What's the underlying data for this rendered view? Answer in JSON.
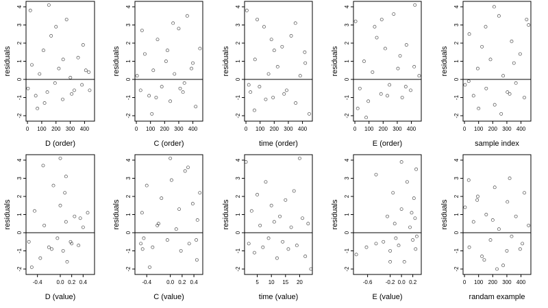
{
  "figure": {
    "panels": [
      {
        "xlabel": "D (order)",
        "xticks": [
          "0",
          "100",
          "200",
          "300",
          "400"
        ]
      },
      {
        "xlabel": "C (order)",
        "xticks": [
          "0",
          "100",
          "200",
          "300",
          "400"
        ]
      },
      {
        "xlabel": "time (order)",
        "xticks": [
          "0",
          "100",
          "200",
          "300",
          "400"
        ]
      },
      {
        "xlabel": "E (order)",
        "xticks": [
          "0",
          "100",
          "200",
          "300",
          "400"
        ]
      },
      {
        "xlabel": "sample index",
        "xticks": [
          "0",
          "100",
          "200",
          "300",
          "400"
        ]
      },
      {
        "xlabel": "D (value)",
        "xticks": [
          "-0.4",
          "0.0",
          "0.2",
          "0.4"
        ]
      },
      {
        "xlabel": "C (value)",
        "xticks": [
          "-0.4",
          "0.0",
          "0.2",
          "0.4"
        ]
      },
      {
        "xlabel": "time (value)",
        "xticks": [
          "5",
          "10",
          "15",
          "20"
        ]
      },
      {
        "xlabel": "E (value)",
        "xticks": [
          "-0.6",
          "-0.2",
          "0.0",
          "0.2"
        ]
      },
      {
        "xlabel": "randam example",
        "xticks": [
          "0",
          "100",
          "200",
          "300",
          "400"
        ]
      }
    ]
  },
  "chart_data": [
    {
      "type": "scatter",
      "xlabel": "D (order)",
      "ylabel": "residuals",
      "xlim": [
        -10,
        470
      ],
      "ylim": [
        -2.3,
        4.3
      ],
      "x_ticks": [
        0,
        100,
        200,
        300,
        400
      ],
      "y_ticks": [
        -2,
        -1,
        0,
        1,
        2,
        3,
        4
      ],
      "hline": 0,
      "x": [
        4,
        31,
        58,
        85,
        112,
        139,
        166,
        193,
        220,
        247,
        274,
        301,
        328,
        355,
        382,
        409,
        436,
        20,
        120,
        200,
        310,
        390,
        430,
        70,
        250,
        150
      ],
      "y": [
        -0.5,
        0.8,
        -0.9,
        0.3,
        1.6,
        -0.7,
        2.4,
        -0.2,
        0.6,
        -1.1,
        3.3,
        0.1,
        -0.6,
        1.2,
        -0.3,
        0.5,
        -0.6,
        3.8,
        -1.3,
        2.9,
        -0.8,
        1.9,
        0.4,
        -1.6,
        1.1,
        4.1
      ]
    },
    {
      "type": "scatter",
      "xlabel": "C (order)",
      "ylabel": "residuals",
      "xlim": [
        -10,
        470
      ],
      "ylim": [
        -2.3,
        4.3
      ],
      "x_ticks": [
        0,
        100,
        200,
        300,
        400
      ],
      "y_ticks": [
        -2,
        -1,
        0,
        1,
        2,
        3,
        4
      ],
      "hline": 0,
      "x": [
        5,
        30,
        60,
        90,
        120,
        150,
        180,
        210,
        240,
        270,
        300,
        330,
        360,
        390,
        420,
        450,
        40,
        140,
        260,
        340,
        400,
        110,
        220,
        310
      ],
      "y": [
        0.2,
        -0.6,
        1.4,
        -0.9,
        0.5,
        2.2,
        -0.4,
        1.0,
        -1.2,
        0.3,
        2.8,
        -0.7,
        3.5,
        0.6,
        -1.5,
        1.7,
        2.7,
        -1.0,
        3.1,
        -0.2,
        0.9,
        -1.9,
        1.6,
        -0.5
      ]
    },
    {
      "type": "scatter",
      "xlabel": "time (order)",
      "ylabel": "residuals",
      "xlim": [
        -10,
        470
      ],
      "ylim": [
        -2.3,
        4.3
      ],
      "x_ticks": [
        0,
        100,
        200,
        300,
        400
      ],
      "y_ticks": [
        -2,
        -1,
        0,
        1,
        2,
        3,
        4
      ],
      "hline": 0,
      "x": [
        6,
        32,
        64,
        96,
        128,
        160,
        192,
        224,
        256,
        288,
        320,
        352,
        384,
        416,
        448,
        20,
        80,
        140,
        200,
        270,
        350,
        420,
        60,
        180
      ],
      "y": [
        3.8,
        -0.7,
        1.1,
        -0.4,
        2.9,
        0.3,
        -1.0,
        0.7,
        1.8,
        -0.6,
        2.4,
        -1.3,
        0.2,
        1.5,
        -1.9,
        -0.3,
        3.3,
        -1.1,
        1.6,
        -0.8,
        3.1,
        0.9,
        -1.7,
        2.2
      ]
    },
    {
      "type": "scatter",
      "xlabel": "E (order)",
      "ylabel": "residuals",
      "xlim": [
        -10,
        470
      ],
      "ylim": [
        -2.3,
        4.3
      ],
      "x_ticks": [
        0,
        100,
        200,
        300,
        400
      ],
      "y_ticks": [
        -2,
        -1,
        0,
        1,
        2,
        3,
        4
      ],
      "hline": 0,
      "x": [
        5,
        35,
        65,
        95,
        125,
        155,
        185,
        215,
        245,
        275,
        305,
        335,
        365,
        395,
        425,
        455,
        20,
        140,
        230,
        320,
        420,
        80,
        190,
        360
      ],
      "y": [
        3.2,
        -0.5,
        1.0,
        -1.2,
        0.4,
        2.3,
        -0.8,
        1.7,
        -0.3,
        3.6,
        0.6,
        -1.0,
        1.9,
        -0.6,
        4.1,
        0.2,
        -1.6,
        2.9,
        -0.9,
        1.3,
        0.7,
        -2.1,
        3.3,
        -0.4
      ]
    },
    {
      "type": "scatter",
      "xlabel": "sample index",
      "ylabel": "residuals",
      "xlim": [
        -10,
        470
      ],
      "ylim": [
        -2.3,
        4.3
      ],
      "x_ticks": [
        0,
        100,
        200,
        300,
        400
      ],
      "y_ticks": [
        -2,
        -1,
        0,
        1,
        2,
        3,
        4
      ],
      "hline": 0,
      "x": [
        4,
        34,
        64,
        94,
        124,
        154,
        184,
        214,
        244,
        274,
        304,
        334,
        364,
        394,
        424,
        454,
        30,
        150,
        260,
        350,
        440,
        100,
        210,
        320
      ],
      "y": [
        -0.3,
        2.5,
        -0.9,
        0.6,
        1.8,
        -0.5,
        1.1,
        -1.4,
        3.5,
        0.2,
        -0.7,
        2.1,
        -0.2,
        1.4,
        -1.0,
        3.0,
        -0.1,
        2.9,
        -1.9,
        0.9,
        3.3,
        -1.6,
        4.0,
        -0.8
      ]
    },
    {
      "type": "scatter",
      "xlabel": "D (value)",
      "ylabel": "residuals",
      "xlim": [
        -0.6,
        0.6
      ],
      "ylim": [
        -2.3,
        4.3
      ],
      "x_ticks": [
        -0.4,
        0.0,
        0.2,
        0.4
      ],
      "y_ticks": [
        -2,
        -1,
        0,
        1,
        2,
        3,
        4
      ],
      "hline": 0,
      "x": [
        -0.55,
        -0.45,
        -0.35,
        -0.28,
        -0.2,
        -0.12,
        -0.05,
        0.0,
        0.05,
        0.1,
        0.1,
        0.18,
        0.25,
        0.32,
        0.4,
        0.48,
        -0.3,
        -0.15,
        0.08,
        0.12,
        0.35,
        -0.5,
        0.0,
        0.2
      ],
      "y": [
        -0.5,
        1.2,
        -1.4,
        0.4,
        -0.8,
        2.6,
        -0.3,
        1.5,
        -1.0,
        3.1,
        0.6,
        -0.5,
        0.9,
        -0.7,
        0.3,
        1.1,
        3.7,
        -0.9,
        2.2,
        -1.6,
        0.8,
        -1.9,
        4.1,
        -0.6
      ]
    },
    {
      "type": "scatter",
      "xlabel": "C (value)",
      "ylabel": "residuals",
      "xlim": [
        -0.6,
        0.55
      ],
      "ylim": [
        -2.3,
        4.3
      ],
      "x_ticks": [
        -0.4,
        0.0,
        0.2,
        0.4
      ],
      "y_ticks": [
        -2,
        -1,
        0,
        1,
        2,
        3,
        4
      ],
      "hline": 0,
      "x": [
        -0.5,
        -0.48,
        -0.45,
        -0.4,
        -0.3,
        -0.22,
        -0.15,
        -0.05,
        0.02,
        0.1,
        0.18,
        0.25,
        0.32,
        0.38,
        0.45,
        0.46,
        0.5,
        -0.35,
        0.0,
        0.3,
        -0.47,
        0.44,
        -0.2,
        0.15
      ],
      "y": [
        -0.6,
        1.1,
        -0.3,
        2.6,
        -0.8,
        0.4,
        1.9,
        -0.4,
        2.9,
        0.2,
        -1.0,
        3.4,
        -0.6,
        1.6,
        -1.5,
        0.7,
        2.2,
        -1.9,
        4.1,
        3.6,
        -0.9,
        -0.4,
        0.5,
        1.3
      ]
    },
    {
      "type": "scatter",
      "xlabel": "time (value)",
      "ylabel": "residuals",
      "xlim": [
        0.5,
        24.5
      ],
      "ylim": [
        -2.3,
        4.3
      ],
      "x_ticks": [
        5,
        10,
        15,
        20
      ],
      "y_ticks": [
        -2,
        -1,
        0,
        1,
        2,
        3,
        4
      ],
      "hline": 0,
      "x": [
        1,
        2,
        3,
        4,
        5,
        6,
        7,
        8,
        9,
        10,
        11,
        12,
        13,
        14,
        15,
        16,
        17,
        18,
        19,
        20,
        21,
        22,
        23,
        24
      ],
      "y": [
        3.9,
        -0.6,
        1.2,
        -1.1,
        2.1,
        0.4,
        -0.8,
        2.8,
        -0.3,
        1.5,
        0.6,
        -1.4,
        0.9,
        -0.5,
        1.8,
        -0.9,
        0.3,
        2.3,
        -0.7,
        4.1,
        0.8,
        -1.3,
        0.5,
        -2.0
      ]
    },
    {
      "type": "scatter",
      "xlabel": "E (value)",
      "ylabel": "residuals",
      "xlim": [
        -0.85,
        0.35
      ],
      "ylim": [
        -2.3,
        4.3
      ],
      "x_ticks": [
        -0.6,
        -0.2,
        0.0,
        0.2
      ],
      "y_ticks": [
        -2,
        -1,
        0,
        1,
        2,
        3,
        4
      ],
      "hline": 0,
      "x": [
        -0.8,
        -0.62,
        -0.45,
        -0.32,
        -0.25,
        -0.2,
        -0.15,
        -0.12,
        -0.05,
        0.0,
        0.05,
        0.1,
        0.15,
        0.2,
        0.22,
        0.25,
        0.26,
        0.27,
        -0.45,
        -0.2,
        0.0,
        0.24,
        -0.1,
        0.18
      ],
      "y": [
        -1.2,
        -0.8,
        3.2,
        -0.5,
        0.9,
        -1.0,
        2.2,
        0.5,
        -0.7,
        1.3,
        -1.6,
        2.8,
        0.3,
        -0.4,
        1.9,
        -0.9,
        3.5,
        -0.2,
        -0.6,
        -1.6,
        3.9,
        0.8,
        -0.3,
        1.1
      ]
    },
    {
      "type": "scatter",
      "xlabel": "randam example",
      "ylabel": "residuals",
      "xlim": [
        -10,
        470
      ],
      "ylim": [
        -2.3,
        4.3
      ],
      "x_ticks": [
        0,
        100,
        200,
        300,
        400
      ],
      "y_ticks": [
        -2,
        -1,
        0,
        1,
        2,
        3,
        4
      ],
      "hline": 0,
      "x": [
        4,
        34,
        64,
        94,
        124,
        154,
        184,
        214,
        244,
        274,
        304,
        334,
        364,
        394,
        424,
        454,
        30,
        140,
        230,
        320,
        410,
        90,
        200,
        300
      ],
      "y": [
        1.4,
        -0.8,
        0.6,
        2.0,
        -1.3,
        1.0,
        -0.4,
        2.5,
        0.2,
        -1.8,
        1.7,
        -0.2,
        0.9,
        -0.9,
        2.2,
        0.4,
        2.9,
        -1.5,
        -2.0,
        3.0,
        -0.6,
        1.8,
        0.7,
        -1.0
      ]
    }
  ]
}
